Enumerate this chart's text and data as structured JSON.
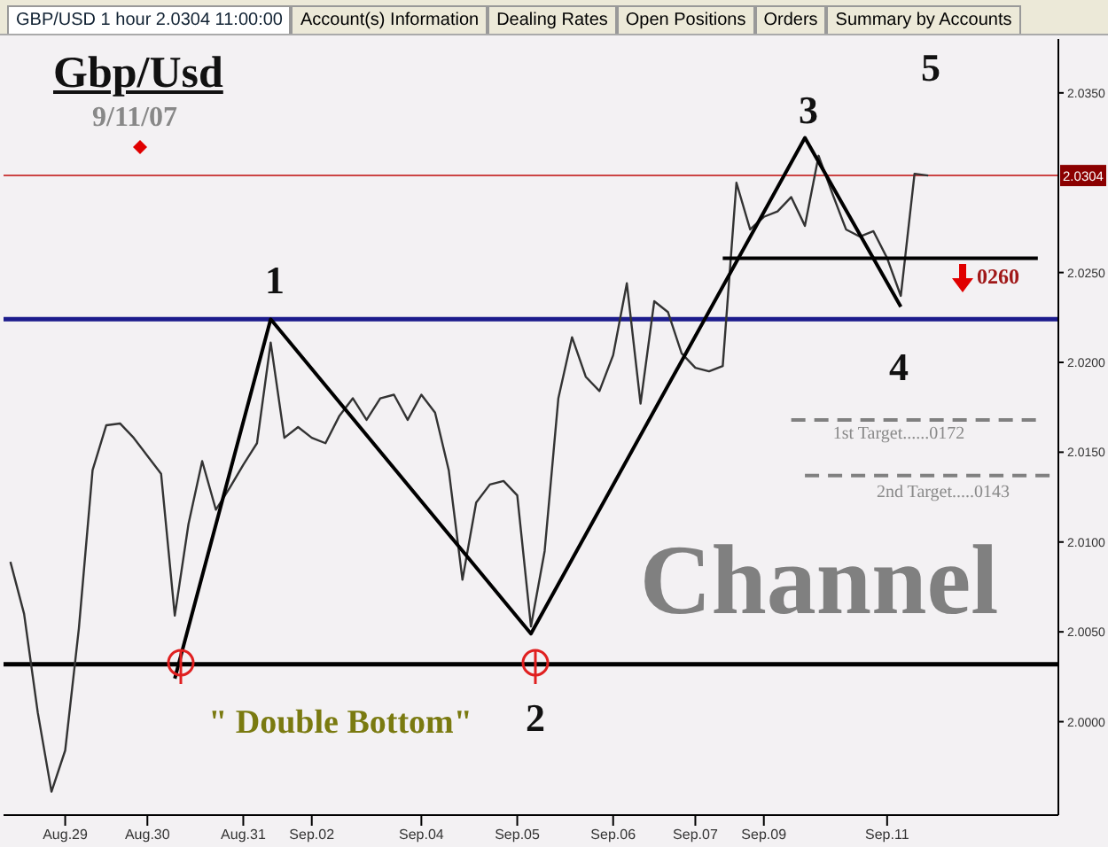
{
  "chart_data": {
    "type": "line",
    "title": "Gbp/Usd",
    "subtitle": "9/11/07",
    "annotations": [
      "GBP/USD 1 hour 2.0304 11:00:00",
      "Account(s) Information",
      "Dealing Rates",
      "Open Positions",
      "Orders",
      "Summary by Accounts",
      "1",
      "2",
      "3",
      "4",
      "5",
      "0260",
      "\" Double Bottom\"",
      "Channel",
      "1st Target......0172",
      "2nd Target.....0143"
    ],
    "categories": [
      null,
      null,
      null,
      null,
      "Aug.29",
      null,
      null,
      null,
      null,
      null,
      "Aug.30",
      null,
      null,
      null,
      null,
      null,
      null,
      "Aug.31",
      null,
      null,
      null,
      null,
      "Sep.02",
      null,
      null,
      null,
      null,
      null,
      null,
      null,
      "Sep.04",
      null,
      null,
      null,
      null,
      null,
      null,
      "Sep.05",
      null,
      null,
      null,
      null,
      null,
      null,
      "Sep.06",
      null,
      null,
      null,
      null,
      null,
      "Sep.07",
      null,
      null,
      null,
      null,
      "Sep.09",
      null,
      null,
      null,
      null,
      null,
      null,
      null,
      null,
      "Sep.11",
      null,
      null,
      null,
      null,
      null,
      null,
      null,
      null,
      null,
      null,
      null,
      null
    ],
    "series": [
      {
        "color": "#333333",
        "values": [
          2.0089,
          2.006,
          2.0005,
          1.9961,
          1.9984,
          2.0052,
          2.014,
          2.0165,
          2.0166,
          2.0158,
          2.0148,
          2.0138,
          2.0059,
          2.011,
          2.0145,
          2.0118,
          2.013,
          2.0143,
          2.0155,
          2.0211,
          2.0158,
          2.0164,
          2.0158,
          2.0155,
          2.017,
          2.018,
          2.0168,
          2.018,
          2.0182,
          2.0168,
          2.0182,
          2.0172,
          2.014,
          2.0079,
          2.0122,
          2.0132,
          2.0134,
          2.0126,
          2.0053,
          2.0095,
          2.018,
          2.0214,
          2.0192,
          2.0184,
          2.0204,
          2.0244,
          2.0177,
          2.0234,
          2.0228,
          2.0205,
          2.0197,
          2.0195,
          2.0198,
          2.03,
          2.0274,
          2.0281,
          2.0284,
          2.0292,
          2.0276,
          2.0315,
          2.0294,
          2.0274,
          2.027,
          2.0273,
          2.0258,
          2.0237,
          2.0305,
          2.0304,
          null,
          null,
          null,
          null,
          null,
          null,
          null,
          null,
          null
        ]
      },
      {
        "color": "#000000",
        "values": [
          null,
          null,
          null,
          null,
          null,
          null,
          null,
          null,
          null,
          null,
          null,
          null,
          2.0024,
          null,
          null,
          null,
          null,
          null,
          null,
          2.0224,
          null,
          null,
          null,
          null,
          null,
          null,
          null,
          null,
          null,
          null,
          null,
          null,
          null,
          null,
          null,
          null,
          null,
          null,
          2.0049,
          null,
          null,
          null,
          null,
          null,
          null,
          null,
          null,
          null,
          null,
          null,
          null,
          null,
          null,
          null,
          null,
          null,
          null,
          null,
          2.0325,
          null,
          null,
          null,
          null,
          null,
          null,
          2.0231,
          null,
          null,
          null,
          null,
          null,
          null,
          null,
          null,
          null,
          null,
          null
        ]
      },
      {
        "color": "#000000",
        "values": [
          null,
          null,
          null,
          null,
          null,
          null,
          null,
          null,
          null,
          null,
          null,
          null,
          null,
          null,
          null,
          null,
          null,
          null,
          null,
          null,
          null,
          null,
          null,
          null,
          null,
          null,
          null,
          null,
          null,
          null,
          null,
          null,
          null,
          null,
          null,
          null,
          null,
          null,
          null,
          null,
          null,
          null,
          null,
          null,
          null,
          null,
          null,
          null,
          null,
          null,
          null,
          null,
          2.0258,
          null,
          null,
          null,
          null,
          null,
          null,
          null,
          null,
          null,
          null,
          null,
          null,
          null,
          null,
          null,
          null,
          null,
          null,
          null,
          null,
          null,
          null,
          2.0258,
          null
        ]
      },
      {
        "color": "#808080",
        "line_style": "dashed",
        "values": [
          null,
          null,
          null,
          null,
          null,
          null,
          null,
          null,
          null,
          null,
          null,
          null,
          null,
          null,
          null,
          null,
          null,
          null,
          null,
          null,
          null,
          null,
          null,
          null,
          null,
          null,
          null,
          null,
          null,
          null,
          null,
          null,
          null,
          null,
          null,
          null,
          null,
          null,
          null,
          null,
          null,
          null,
          null,
          null,
          null,
          null,
          null,
          null,
          null,
          null,
          null,
          null,
          null,
          null,
          null,
          null,
          null,
          2.0168,
          null,
          null,
          null,
          null,
          null,
          null,
          null,
          null,
          null,
          null,
          null,
          null,
          null,
          null,
          null,
          null,
          null,
          2.0168,
          null
        ]
      },
      {
        "color": "#808080",
        "line_style": "dashed",
        "values": [
          null,
          null,
          null,
          null,
          null,
          null,
          null,
          null,
          null,
          null,
          null,
          null,
          null,
          null,
          null,
          null,
          null,
          null,
          null,
          null,
          null,
          null,
          null,
          null,
          null,
          null,
          null,
          null,
          null,
          null,
          null,
          null,
          null,
          null,
          null,
          null,
          null,
          null,
          null,
          null,
          null,
          null,
          null,
          null,
          null,
          null,
          null,
          null,
          null,
          null,
          null,
          null,
          null,
          null,
          null,
          null,
          null,
          null,
          2.0137,
          null,
          null,
          null,
          null,
          null,
          null,
          null,
          null,
          null,
          null,
          null,
          null,
          null,
          null,
          null,
          null,
          null,
          2.0137
        ]
      }
    ],
    "ref_lines": [
      {
        "axis": "y",
        "value": 2.0224,
        "color": "#1c1c8c"
      },
      {
        "axis": "y",
        "value": 2.0032,
        "color": "#000000"
      },
      {
        "axis": "y",
        "value": 2.0304,
        "color": "#cc4444",
        "label": "2.0304"
      }
    ],
    "ylim": [
      1.9948,
      2.038
    ],
    "yticks": [
      {
        "value": 2,
        "label": "2.0000"
      },
      {
        "value": 2.005,
        "label": "2.0050"
      },
      {
        "value": 2.01,
        "label": "2.0100"
      },
      {
        "value": 2.015,
        "label": "2.0150"
      },
      {
        "value": 2.02,
        "label": "2.0200"
      },
      {
        "value": 2.025,
        "label": "2.0250"
      },
      {
        "value": 2.035,
        "label": "2.0350"
      }
    ],
    "marker": "none"
  }
}
